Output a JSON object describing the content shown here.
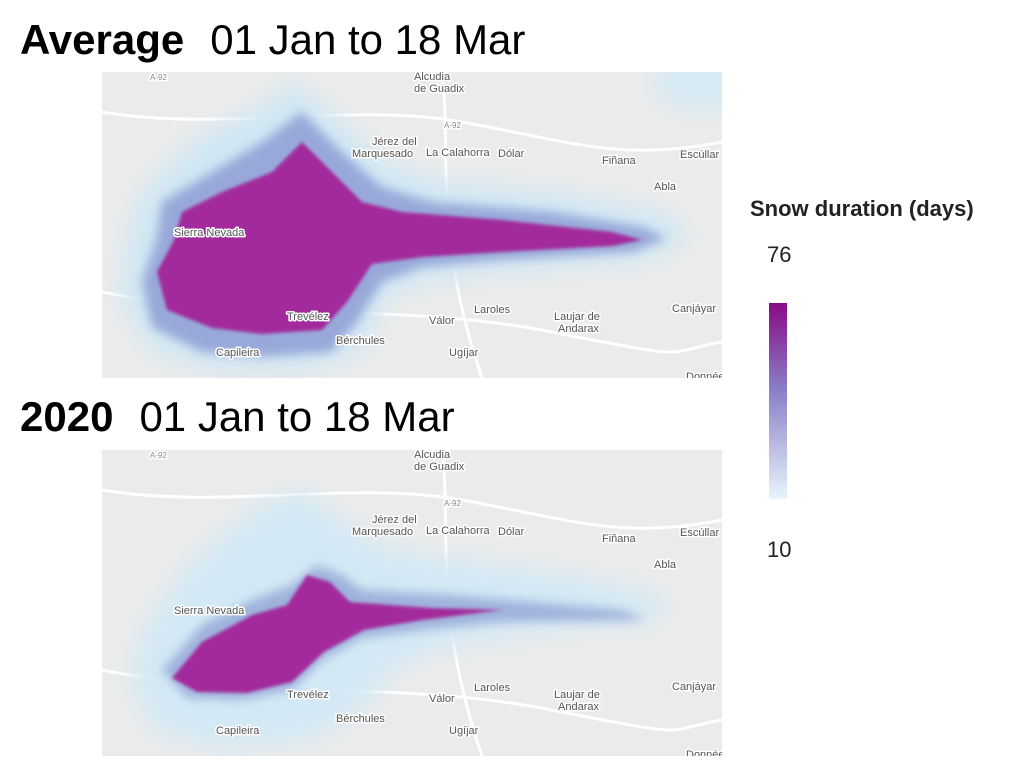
{
  "panels": [
    {
      "label": "Average",
      "period": "01 Jan to 18 Mar"
    },
    {
      "label": "2020",
      "period": "01 Jan to 18 Mar"
    }
  ],
  "map_labels": [
    "Alcudia",
    "de Guadix",
    "A-92",
    "A-92",
    "Jérez del",
    "Marquesado",
    "La Calahorra",
    "Dólar",
    "Fiñana",
    "Escúllar",
    "Abla",
    "Sierra Nevada",
    "Trevélez",
    "Válor",
    "Laroles",
    "Laujar de",
    "Andarax",
    "Canjáyar",
    "Bérchules",
    "Capileira",
    "Ugíjar",
    "Données"
  ],
  "legend": {
    "title": "Snow duration (days)",
    "max": 76,
    "min": 10
  }
}
